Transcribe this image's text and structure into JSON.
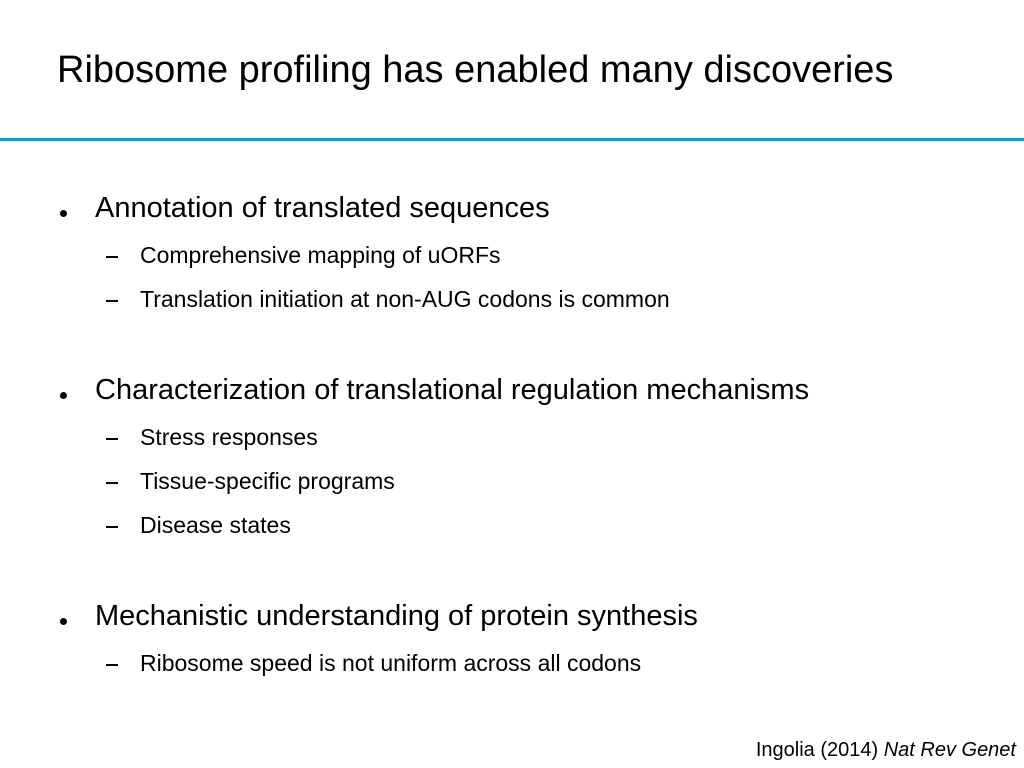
{
  "slide": {
    "title": "Ribosome profiling has enabled many discoveries",
    "sections": [
      {
        "heading": "Annotation of translated sequences",
        "items": [
          "Comprehensive mapping of uORFs",
          "Translation initiation at non-AUG codons is common"
        ]
      },
      {
        "heading": "Characterization of translational regulation mechanisms",
        "items": [
          "Stress responses",
          "Tissue-specific programs",
          "Disease states"
        ]
      },
      {
        "heading": "Mechanistic understanding of protein synthesis",
        "items": [
          "Ribosome speed is not uniform across all codons"
        ]
      }
    ],
    "citation": {
      "author_year": "Ingolia (2014)",
      "journal": "Nat Rev Genet"
    },
    "colors": {
      "title_rule": "#2a8fd0"
    }
  }
}
